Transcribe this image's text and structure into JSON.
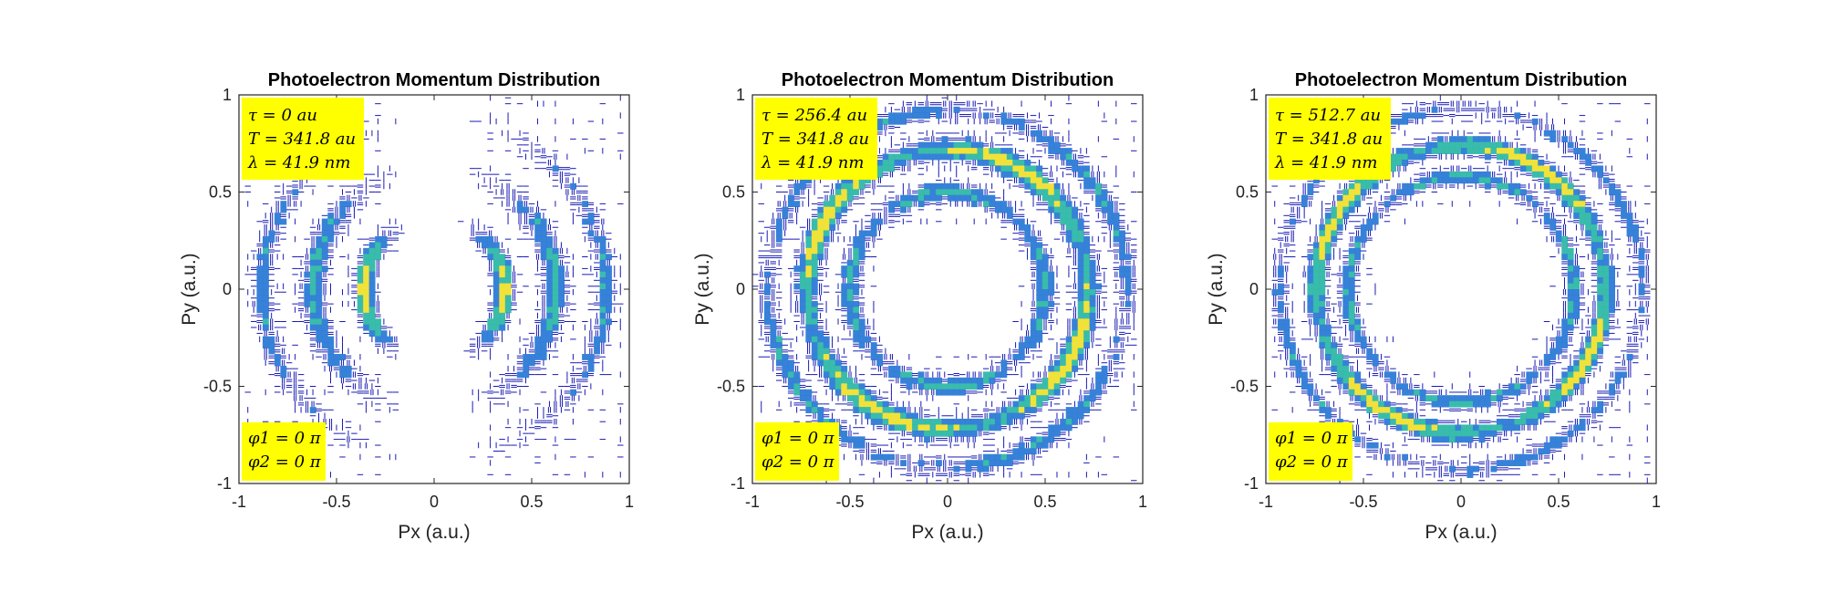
{
  "chart_data": [
    {
      "type": "contour",
      "title": "Photoelectron Momentum Distribution",
      "xlabel": "Px (a.u.)",
      "ylabel": "Py (a.u.)",
      "xlim": [
        -1,
        1
      ],
      "ylim": [
        -1,
        1
      ],
      "xticks": [
        -1,
        -0.5,
        0,
        0.5,
        1
      ],
      "yticks": [
        -1,
        -0.5,
        0,
        0.5,
        1
      ],
      "xticklabels": [
        "-1",
        "-0.5",
        "0",
        "0.5",
        "1"
      ],
      "yticklabels": [
        "-1",
        "-0.5",
        "0",
        "0.5",
        "1"
      ],
      "annotation_top": [
        "τ = 0 au",
        "T = 341.8 au",
        "λ = 41.9 nm"
      ],
      "annotation_bottom": [
        "φ1 = 0 π",
        "φ2 = 0 π"
      ],
      "pattern": "arcs",
      "rings": [
        {
          "r": 0.36,
          "w": 0.05,
          "amp": 1.0
        },
        {
          "r": 0.62,
          "w": 0.06,
          "amp": 0.7
        },
        {
          "r": 0.88,
          "w": 0.05,
          "amp": 0.55
        }
      ]
    },
    {
      "type": "contour",
      "title": "Photoelectron Momentum Distribution",
      "xlabel": "Px (a.u.)",
      "ylabel": "Py (a.u.)",
      "xlim": [
        -1,
        1
      ],
      "ylim": [
        -1,
        1
      ],
      "xticks": [
        -1,
        -0.5,
        0,
        0.5,
        1
      ],
      "yticks": [
        -1,
        -0.5,
        0,
        0.5,
        1
      ],
      "xticklabels": [
        "-1",
        "-0.5",
        "0",
        "0.5",
        "1"
      ],
      "yticklabels": [
        "-1",
        "-0.5",
        "0",
        "0.5",
        "1"
      ],
      "annotation_top": [
        "τ = 256.4 au",
        "T = 341.8 au",
        "λ = 41.9 nm"
      ],
      "annotation_bottom": [
        "φ1 = 0 π",
        "φ2 = 0 π"
      ],
      "pattern": "rings",
      "rings": [
        {
          "r": 0.5,
          "w": 0.05,
          "amp": 0.7
        },
        {
          "r": 0.72,
          "w": 0.06,
          "amp": 1.0
        },
        {
          "r": 0.92,
          "w": 0.05,
          "amp": 0.6
        }
      ]
    },
    {
      "type": "contour",
      "title": "Photoelectron Momentum Distribution",
      "xlabel": "Px (a.u.)",
      "ylabel": "Py (a.u.)",
      "xlim": [
        -1,
        1
      ],
      "ylim": [
        -1,
        1
      ],
      "xticks": [
        -1,
        -0.5,
        0,
        0.5,
        1
      ],
      "yticks": [
        -1,
        -0.5,
        0,
        0.5,
        1
      ],
      "xticklabels": [
        "-1",
        "-0.5",
        "0",
        "0.5",
        "1"
      ],
      "yticklabels": [
        "-1",
        "-0.5",
        "0",
        "0.5",
        "1"
      ],
      "annotation_top": [
        "τ = 512.7 au",
        "T = 341.8 au",
        "λ = 41.9 nm"
      ],
      "annotation_bottom": [
        "φ1 = 0 π",
        "φ2 = 0 π"
      ],
      "pattern": "rings",
      "rings": [
        {
          "r": 0.58,
          "w": 0.04,
          "amp": 0.7
        },
        {
          "r": 0.74,
          "w": 0.05,
          "amp": 1.0
        },
        {
          "r": 0.93,
          "w": 0.04,
          "amp": 0.55
        }
      ]
    }
  ],
  "colors": {
    "contour_low": "#1a1ab4",
    "contour_mid": "#2c7bd6",
    "contour_high": "#2fb8a8",
    "contour_peak": "#f0e030",
    "annotation_bg": "#ffff00"
  }
}
